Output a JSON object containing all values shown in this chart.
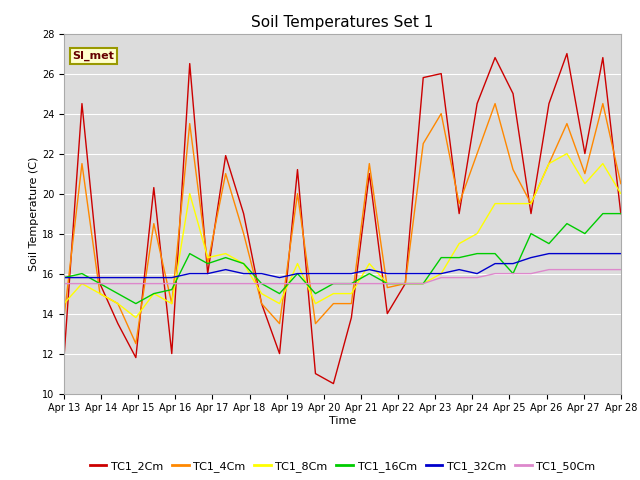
{
  "title": "Soil Temperatures Set 1",
  "xlabel": "Time",
  "ylabel": "Soil Temperature (C)",
  "ylim": [
    10,
    28
  ],
  "plot_bg_color": "#dcdcdc",
  "annotation_text": "SI_met",
  "annotation_bg": "#ffffcc",
  "annotation_border": "#999900",
  "x_tick_labels": [
    "Apr 13",
    "Apr 14",
    "Apr 15",
    "Apr 16",
    "Apr 17",
    "Apr 18",
    "Apr 19",
    "Apr 20",
    "Apr 21",
    "Apr 22",
    "Apr 23",
    "Apr 24",
    "Apr 25",
    "Apr 26",
    "Apr 27",
    "Apr 28"
  ],
  "series": {
    "TC1_2Cm": {
      "color": "#cc0000",
      "data": [
        11.8,
        24.5,
        15.5,
        13.5,
        11.8,
        20.3,
        12.0,
        26.5,
        16.0,
        21.9,
        19.0,
        14.5,
        12.0,
        21.2,
        11.0,
        10.5,
        13.8,
        21.0,
        14.0,
        15.5,
        25.8,
        26.0,
        19.0,
        24.5,
        26.8,
        25.0,
        19.0,
        24.5,
        27.0,
        22.0,
        26.8,
        19.0
      ]
    },
    "TC1_4Cm": {
      "color": "#ff8800",
      "data": [
        13.8,
        21.5,
        15.0,
        14.5,
        12.5,
        18.5,
        14.5,
        23.5,
        16.5,
        21.0,
        18.0,
        14.5,
        13.5,
        20.0,
        13.5,
        14.5,
        14.5,
        21.5,
        15.3,
        15.5,
        22.5,
        24.0,
        19.5,
        22.0,
        24.5,
        21.2,
        19.5,
        21.5,
        23.5,
        21.0,
        24.5,
        20.5
      ]
    },
    "TC1_8Cm": {
      "color": "#ffff00",
      "data": [
        14.5,
        15.5,
        15.0,
        14.5,
        13.8,
        15.0,
        14.5,
        20.0,
        16.8,
        17.0,
        16.5,
        15.0,
        14.5,
        16.5,
        14.5,
        15.0,
        15.0,
        16.5,
        15.5,
        15.5,
        15.5,
        16.0,
        17.5,
        18.0,
        19.5,
        19.5,
        19.5,
        21.5,
        22.0,
        20.5,
        21.5,
        20.0
      ]
    },
    "TC1_16Cm": {
      "color": "#00cc00",
      "data": [
        15.8,
        16.0,
        15.5,
        15.0,
        14.5,
        15.0,
        15.2,
        17.0,
        16.5,
        16.8,
        16.5,
        15.5,
        15.0,
        16.0,
        15.0,
        15.5,
        15.5,
        16.0,
        15.5,
        15.5,
        15.5,
        16.8,
        16.8,
        17.0,
        17.0,
        16.0,
        18.0,
        17.5,
        18.5,
        18.0,
        19.0,
        19.0
      ]
    },
    "TC1_32Cm": {
      "color": "#0000cc",
      "data": [
        15.8,
        15.8,
        15.8,
        15.8,
        15.8,
        15.8,
        15.8,
        16.0,
        16.0,
        16.2,
        16.0,
        16.0,
        15.8,
        16.0,
        16.0,
        16.0,
        16.0,
        16.2,
        16.0,
        16.0,
        16.0,
        16.0,
        16.2,
        16.0,
        16.5,
        16.5,
        16.8,
        17.0,
        17.0,
        17.0,
        17.0,
        17.0
      ]
    },
    "TC1_50Cm": {
      "color": "#dd88cc",
      "data": [
        15.5,
        15.5,
        15.5,
        15.5,
        15.5,
        15.5,
        15.5,
        15.5,
        15.5,
        15.5,
        15.5,
        15.5,
        15.5,
        15.5,
        15.5,
        15.5,
        15.5,
        15.5,
        15.5,
        15.5,
        15.5,
        15.8,
        15.8,
        15.8,
        16.0,
        16.0,
        16.0,
        16.2,
        16.2,
        16.2,
        16.2,
        16.2
      ]
    }
  },
  "title_fontsize": 11,
  "axis_label_fontsize": 8,
  "tick_fontsize": 7,
  "legend_fontsize": 8
}
